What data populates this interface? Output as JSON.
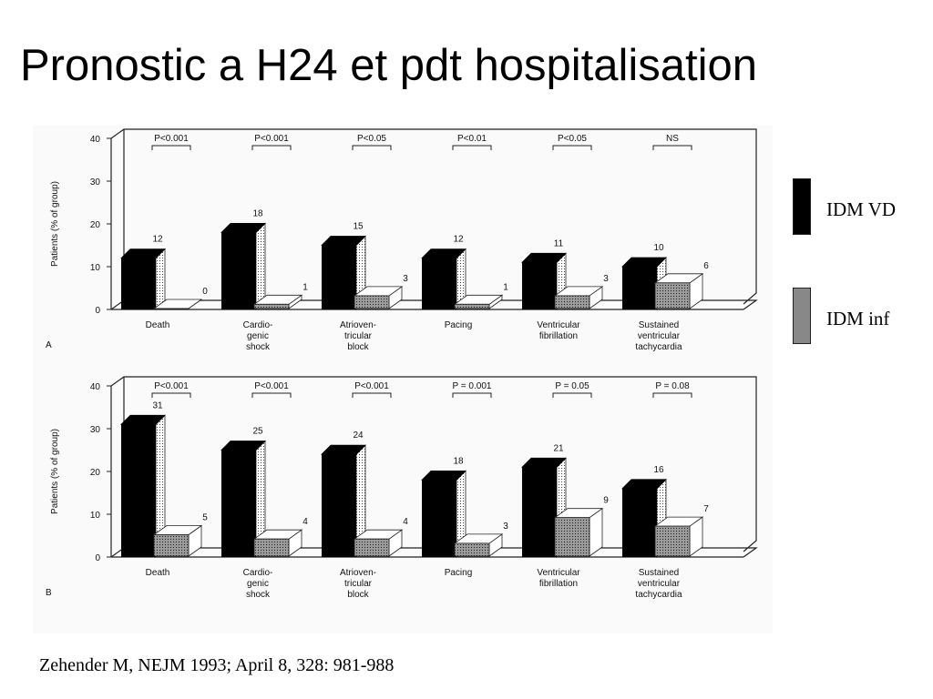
{
  "title": "Pronostic a H24 et pdt hospitalisation",
  "citation": "Zehender M, NEJM 1993; April 8, 328: 981-988",
  "legend": [
    {
      "label": "IDM VD",
      "color": "#000000"
    },
    {
      "label": "IDM inf",
      "color": "#888888"
    }
  ],
  "chart_data": [
    {
      "type": "bar",
      "panel_label": "A",
      "ylabel": "Patients (% of group)",
      "ylim": [
        0,
        40
      ],
      "yticks": [
        0,
        10,
        20,
        30,
        40
      ],
      "categories": [
        "Death",
        "Cardio-\ngenic\nshock",
        "Atrioven-\ntricular\nblock",
        "Pacing",
        "Ventricular\nfibrillation",
        "Sustained\nventricular\ntachycardia"
      ],
      "p_values": [
        "P<0.001",
        "P<0.001",
        "P<0.05",
        "P<0.01",
        "P<0.05",
        "NS"
      ],
      "series": [
        {
          "name": "IDM VD",
          "values": [
            12,
            18,
            15,
            12,
            11,
            10
          ]
        },
        {
          "name": "IDM inf",
          "values": [
            0,
            1,
            3,
            1,
            3,
            6
          ]
        }
      ]
    },
    {
      "type": "bar",
      "panel_label": "B",
      "ylabel": "Patients (% of group)",
      "ylim": [
        0,
        40
      ],
      "yticks": [
        0,
        10,
        20,
        30,
        40
      ],
      "categories": [
        "Death",
        "Cardio-\ngenic\nshock",
        "Atrioven-\ntricular\nblock",
        "Pacing",
        "Ventricular\nfibrillation",
        "Sustained\nventricular\ntachycardia"
      ],
      "p_values": [
        "P<0.001",
        "P<0.001",
        "P<0.001",
        "P = 0.001",
        "P = 0.05",
        "P = 0.08"
      ],
      "series": [
        {
          "name": "IDM VD",
          "values": [
            31,
            25,
            24,
            18,
            21,
            16
          ]
        },
        {
          "name": "IDM inf",
          "values": [
            5,
            4,
            4,
            3,
            9,
            7
          ]
        }
      ]
    }
  ]
}
